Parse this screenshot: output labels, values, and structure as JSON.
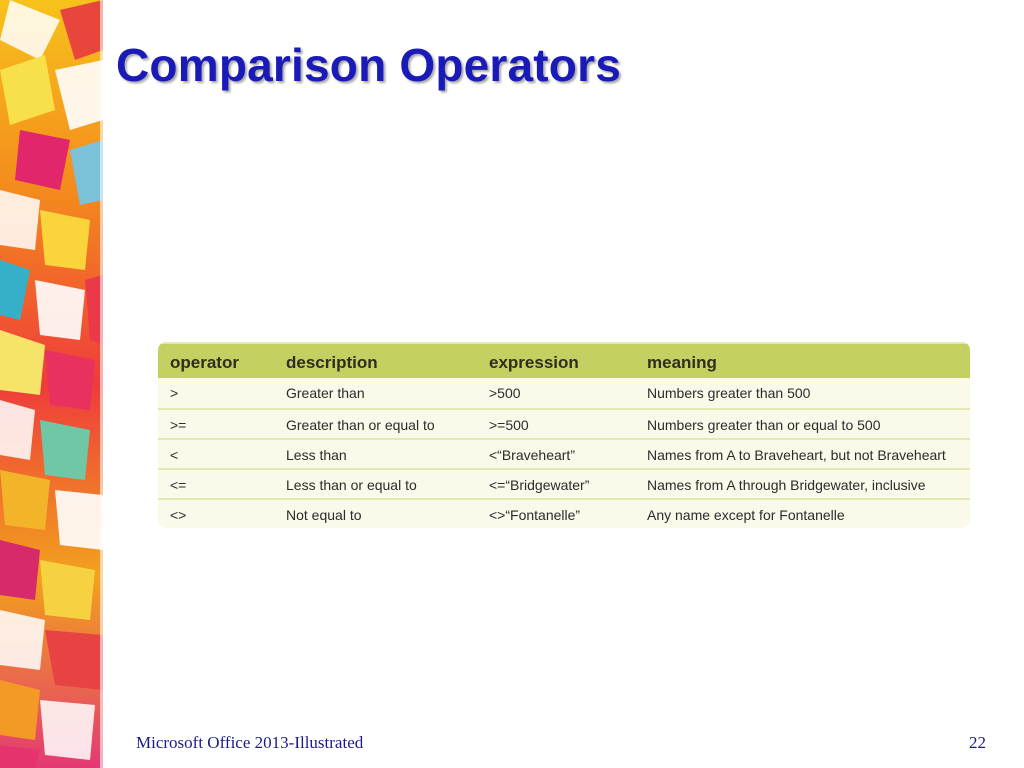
{
  "slide": {
    "title": "Comparison Operators",
    "footer_text": "Microsoft Office 2013-Illustrated",
    "page_number": "22"
  },
  "table": {
    "headers": [
      "operator",
      "description",
      "expression",
      "meaning"
    ],
    "rows": [
      [
        ">",
        "Greater than",
        ">500",
        "Numbers greater than 500"
      ],
      [
        ">=",
        "Greater than or equal to",
        ">=500",
        "Numbers greater than or equal to 500"
      ],
      [
        "<",
        "Less than",
        "<“Braveheart”",
        "Names from A to Braveheart, but not Braveheart"
      ],
      [
        "<=",
        "Less than or equal to",
        "<=“Bridgewater”",
        "Names from A through Bridgewater, inclusive"
      ],
      [
        "<>",
        "Not equal to",
        "<>“Fontanelle”",
        "Any name except for Fontanelle"
      ]
    ]
  },
  "colors": {
    "title": "#1a1ab8",
    "table_header": "#c4d162",
    "table_body": "#fbfaea",
    "footer_text": "#1a1a8a"
  },
  "decoration": {
    "left_strip": "colorful-diamond-pattern"
  }
}
